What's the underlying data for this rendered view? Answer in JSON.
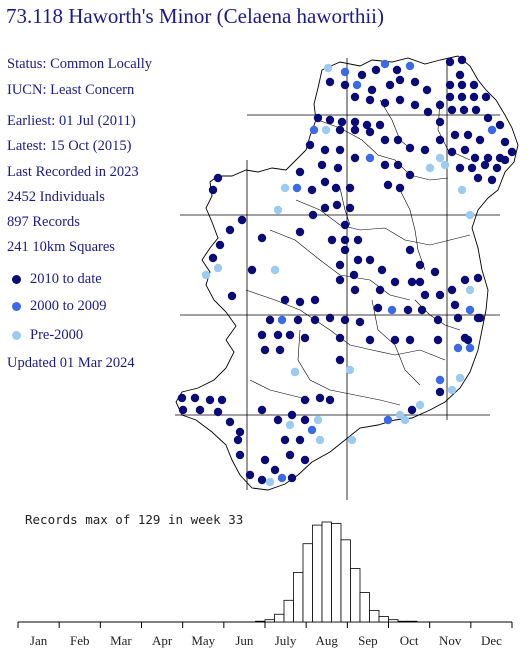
{
  "title": "73.118 Haworth's Minor (Celaena haworthii)",
  "stats": [
    "Status: Common Locally",
    "IUCN: Least Concern",
    "Earliest: 01 Jul (2011)",
    "Latest: 15 Oct (2015)",
    "Last Recorded in 2023",
    "2452 Individuals",
    "897 Records",
    "241 10km Squares"
  ],
  "legend": [
    {
      "label": "2010 to date",
      "color": "#0a0a78"
    },
    {
      "label": "2000 to 2009",
      "color": "#3a6ae8"
    },
    {
      "label": "Pre-2000",
      "color": "#9ccbf2"
    }
  ],
  "updated": "Updated 01 Mar 2024",
  "chart_data": {
    "type": "bar",
    "title": "Records max of 129 in week 33",
    "months": [
      "Jan",
      "Feb",
      "Mar",
      "Apr",
      "May",
      "Jun",
      "July",
      "Aug",
      "Sep",
      "Oct",
      "Nov",
      "Dec"
    ],
    "weeks": [
      26,
      27,
      28,
      29,
      30,
      31,
      32,
      33,
      34,
      35,
      36,
      37,
      38,
      39,
      40,
      41,
      42
    ],
    "values": [
      1,
      3,
      10,
      28,
      64,
      101,
      125,
      129,
      127,
      106,
      69,
      38,
      15,
      7,
      3,
      1,
      1
    ],
    "max": 129
  },
  "map_data": {
    "records": [
      [
        328,
        68,
        2
      ],
      [
        345,
        72,
        1
      ],
      [
        362,
        75,
        0
      ],
      [
        376,
        70,
        0
      ],
      [
        385,
        64,
        1
      ],
      [
        397,
        70,
        0
      ],
      [
        410,
        66,
        1
      ],
      [
        450,
        62,
        0
      ],
      [
        462,
        60,
        0
      ],
      [
        460,
        75,
        0
      ],
      [
        450,
        85,
        0
      ],
      [
        462,
        85,
        0
      ],
      [
        474,
        85,
        0
      ],
      [
        450,
        97,
        0
      ],
      [
        462,
        97,
        0
      ],
      [
        474,
        97,
        0
      ],
      [
        486,
        97,
        0
      ],
      [
        440,
        105,
        0
      ],
      [
        452,
        110,
        0
      ],
      [
        464,
        110,
        0
      ],
      [
        476,
        110,
        0
      ],
      [
        488,
        118,
        0
      ],
      [
        500,
        125,
        0
      ],
      [
        330,
        82,
        0
      ],
      [
        345,
        85,
        0
      ],
      [
        357,
        85,
        1
      ],
      [
        372,
        90,
        0
      ],
      [
        390,
        85,
        0
      ],
      [
        400,
        80,
        0
      ],
      [
        415,
        82,
        0
      ],
      [
        427,
        90,
        0
      ],
      [
        355,
        97,
        0
      ],
      [
        370,
        100,
        0
      ],
      [
        385,
        103,
        0
      ],
      [
        400,
        100,
        0
      ],
      [
        415,
        105,
        0
      ],
      [
        428,
        112,
        0
      ],
      [
        440,
        122,
        0
      ],
      [
        318,
        118,
        0
      ],
      [
        330,
        120,
        0
      ],
      [
        342,
        122,
        0
      ],
      [
        355,
        122,
        0
      ],
      [
        367,
        125,
        0
      ],
      [
        380,
        125,
        0
      ],
      [
        314,
        130,
        1
      ],
      [
        326,
        130,
        2
      ],
      [
        340,
        130,
        0
      ],
      [
        355,
        130,
        0
      ],
      [
        370,
        132,
        0
      ],
      [
        385,
        140,
        0
      ],
      [
        398,
        140,
        0
      ],
      [
        410,
        148,
        0
      ],
      [
        425,
        150,
        0
      ],
      [
        440,
        140,
        0
      ],
      [
        455,
        135,
        0
      ],
      [
        468,
        135,
        0
      ],
      [
        480,
        140,
        0
      ],
      [
        492,
        130,
        1
      ],
      [
        505,
        142,
        0
      ],
      [
        512,
        152,
        0
      ],
      [
        500,
        158,
        0
      ],
      [
        488,
        158,
        0
      ],
      [
        475,
        158,
        0
      ],
      [
        465,
        150,
        0
      ],
      [
        452,
        152,
        0
      ],
      [
        440,
        158,
        2
      ],
      [
        430,
        168,
        2
      ],
      [
        445,
        165,
        2
      ],
      [
        460,
        168,
        0
      ],
      [
        472,
        168,
        0
      ],
      [
        485,
        165,
        0
      ],
      [
        497,
        168,
        0
      ],
      [
        505,
        160,
        0
      ],
      [
        492,
        180,
        0
      ],
      [
        478,
        178,
        0
      ],
      [
        462,
        190,
        2
      ],
      [
        470,
        215,
        2
      ],
      [
        310,
        145,
        0
      ],
      [
        325,
        150,
        0
      ],
      [
        340,
        150,
        0
      ],
      [
        355,
        158,
        0
      ],
      [
        370,
        158,
        1
      ],
      [
        385,
        165,
        0
      ],
      [
        398,
        165,
        0
      ],
      [
        410,
        175,
        0
      ],
      [
        322,
        165,
        0
      ],
      [
        338,
        168,
        0
      ],
      [
        300,
        172,
        0
      ],
      [
        325,
        182,
        0
      ],
      [
        312,
        190,
        0
      ],
      [
        297,
        188,
        1
      ],
      [
        285,
        188,
        2
      ],
      [
        336,
        188,
        0
      ],
      [
        350,
        188,
        0
      ],
      [
        388,
        185,
        0
      ],
      [
        400,
        188,
        0
      ],
      [
        278,
        210,
        2
      ],
      [
        262,
        238,
        0
      ],
      [
        252,
        270,
        0
      ],
      [
        232,
        296,
        0
      ],
      [
        218,
        268,
        2
      ],
      [
        206,
        275,
        2
      ],
      [
        213,
        258,
        0
      ],
      [
        220,
        245,
        0
      ],
      [
        230,
        230,
        0
      ],
      [
        242,
        220,
        0
      ],
      [
        213,
        190,
        0
      ],
      [
        218,
        178,
        0
      ],
      [
        300,
        232,
        0
      ],
      [
        313,
        215,
        0
      ],
      [
        325,
        208,
        0
      ],
      [
        337,
        205,
        0
      ],
      [
        350,
        208,
        0
      ],
      [
        345,
        225,
        0
      ],
      [
        332,
        240,
        0
      ],
      [
        345,
        240,
        0
      ],
      [
        358,
        240,
        0
      ],
      [
        345,
        250,
        0
      ],
      [
        358,
        260,
        0
      ],
      [
        340,
        265,
        0
      ],
      [
        340,
        280,
        0
      ],
      [
        354,
        275,
        0
      ],
      [
        370,
        260,
        0
      ],
      [
        382,
        270,
        0
      ],
      [
        395,
        282,
        0
      ],
      [
        412,
        282,
        0
      ],
      [
        425,
        295,
        0
      ],
      [
        440,
        295,
        0
      ],
      [
        452,
        290,
        0
      ],
      [
        465,
        280,
        0
      ],
      [
        478,
        278,
        0
      ],
      [
        470,
        290,
        2
      ],
      [
        470,
        310,
        1
      ],
      [
        458,
        318,
        0
      ],
      [
        478,
        318,
        0
      ],
      [
        465,
        338,
        0
      ],
      [
        470,
        348,
        1
      ],
      [
        458,
        348,
        1
      ],
      [
        460,
        378,
        2
      ],
      [
        452,
        390,
        2
      ],
      [
        275,
        270,
        2
      ],
      [
        285,
        300,
        0
      ],
      [
        300,
        302,
        0
      ],
      [
        315,
        300,
        0
      ],
      [
        270,
        320,
        0
      ],
      [
        282,
        320,
        1
      ],
      [
        298,
        320,
        0
      ],
      [
        315,
        320,
        0
      ],
      [
        330,
        318,
        0
      ],
      [
        345,
        320,
        0
      ],
      [
        360,
        322,
        0
      ],
      [
        378,
        308,
        0
      ],
      [
        392,
        310,
        1
      ],
      [
        408,
        310,
        0
      ],
      [
        422,
        310,
        0
      ],
      [
        438,
        320,
        0
      ],
      [
        262,
        335,
        0
      ],
      [
        278,
        335,
        0
      ],
      [
        290,
        335,
        0
      ],
      [
        305,
        338,
        0
      ],
      [
        340,
        338,
        0
      ],
      [
        370,
        340,
        0
      ],
      [
        395,
        340,
        0
      ],
      [
        410,
        340,
        0
      ],
      [
        438,
        340,
        0
      ],
      [
        280,
        350,
        0
      ],
      [
        265,
        350,
        0
      ],
      [
        340,
        360,
        0
      ],
      [
        350,
        370,
        2
      ],
      [
        295,
        372,
        2
      ],
      [
        440,
        380,
        1
      ],
      [
        440,
        392,
        0
      ],
      [
        182,
        398,
        0
      ],
      [
        195,
        398,
        0
      ],
      [
        210,
        400,
        0
      ],
      [
        222,
        400,
        0
      ],
      [
        183,
        410,
        0
      ],
      [
        200,
        410,
        0
      ],
      [
        218,
        412,
        0
      ],
      [
        230,
        422,
        0
      ],
      [
        240,
        432,
        0
      ],
      [
        262,
        410,
        0
      ],
      [
        278,
        420,
        0
      ],
      [
        292,
        415,
        0
      ],
      [
        305,
        400,
        0
      ],
      [
        320,
        398,
        0
      ],
      [
        330,
        400,
        0
      ],
      [
        305,
        420,
        0
      ],
      [
        318,
        420,
        2
      ],
      [
        290,
        425,
        2
      ],
      [
        312,
        430,
        1
      ],
      [
        320,
        440,
        2
      ],
      [
        300,
        440,
        0
      ],
      [
        285,
        440,
        0
      ],
      [
        290,
        455,
        0
      ],
      [
        305,
        460,
        0
      ],
      [
        275,
        470,
        0
      ],
      [
        262,
        480,
        0
      ],
      [
        250,
        475,
        0
      ],
      [
        265,
        460,
        0
      ],
      [
        282,
        478,
        1
      ],
      [
        292,
        478,
        0
      ],
      [
        270,
        482,
        2
      ],
      [
        352,
        440,
        2
      ],
      [
        388,
        420,
        1
      ],
      [
        400,
        415,
        2
      ],
      [
        412,
        410,
        0
      ],
      [
        405,
        420,
        2
      ],
      [
        420,
        405,
        2
      ],
      [
        468,
        340,
        0
      ],
      [
        480,
        318,
        0
      ],
      [
        455,
        305,
        0
      ],
      [
        410,
        250,
        0
      ],
      [
        420,
        265,
        0
      ],
      [
        435,
        272,
        0
      ],
      [
        420,
        282,
        0
      ],
      [
        355,
        290,
        0
      ],
      [
        380,
        290,
        0
      ],
      [
        240,
        455,
        0
      ],
      [
        238,
        440,
        0
      ]
    ]
  }
}
